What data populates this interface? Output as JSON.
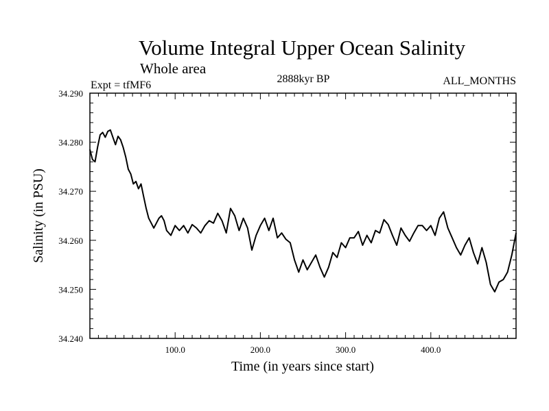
{
  "chart_data": {
    "type": "line",
    "title": "Volume Integral Upper Ocean Salinity",
    "subtitle": "Whole area",
    "experiment": "Expt = tfMF6",
    "period": "2888kyr BP",
    "months": "ALL_MONTHS",
    "xlabel": "Time (in years since start)",
    "ylabel": "Salinity (in PSU)",
    "xlim": [
      0,
      500
    ],
    "ylim": [
      34.24,
      34.29
    ],
    "x_ticks": [
      100,
      200,
      300,
      400
    ],
    "x_tick_labels": [
      "100.0",
      "200.0",
      "300.0",
      "400.0"
    ],
    "y_ticks": [
      34.24,
      34.25,
      34.26,
      34.27,
      34.28,
      34.29
    ],
    "y_tick_labels": [
      "34.240",
      "34.250",
      "34.260",
      "34.270",
      "34.280",
      "34.290"
    ],
    "grid": false,
    "series": [
      {
        "name": "salinity",
        "x": [
          0,
          3,
          6,
          9,
          12,
          15,
          18,
          21,
          24,
          27,
          30,
          33,
          36,
          39,
          42,
          45,
          48,
          51,
          54,
          57,
          60,
          63,
          66,
          69,
          72,
          75,
          78,
          81,
          84,
          87,
          90,
          95,
          100,
          105,
          110,
          115,
          120,
          125,
          130,
          135,
          140,
          145,
          150,
          155,
          160,
          165,
          170,
          175,
          180,
          185,
          190,
          195,
          200,
          205,
          210,
          215,
          220,
          225,
          230,
          235,
          240,
          245,
          250,
          255,
          260,
          265,
          270,
          275,
          280,
          285,
          290,
          295,
          300,
          305,
          310,
          315,
          320,
          325,
          330,
          335,
          340,
          345,
          350,
          355,
          360,
          365,
          370,
          375,
          380,
          385,
          390,
          395,
          400,
          405,
          410,
          415,
          420,
          425,
          430,
          435,
          440,
          445,
          450,
          455,
          460,
          465,
          470,
          475,
          480,
          485,
          490,
          495,
          500
        ],
        "values": [
          34.2785,
          34.2765,
          34.276,
          34.279,
          34.2815,
          34.282,
          34.281,
          34.2822,
          34.2825,
          34.281,
          34.2795,
          34.2812,
          34.2805,
          34.279,
          34.277,
          34.2745,
          34.2735,
          34.2715,
          34.272,
          34.2705,
          34.2715,
          34.269,
          34.2665,
          34.2645,
          34.2635,
          34.2625,
          34.2635,
          34.2645,
          34.265,
          34.264,
          34.262,
          34.261,
          34.263,
          34.262,
          34.263,
          34.2615,
          34.2632,
          34.2625,
          34.2615,
          34.263,
          34.264,
          34.2635,
          34.2655,
          34.264,
          34.2615,
          34.2665,
          34.265,
          34.262,
          34.2645,
          34.2625,
          34.258,
          34.261,
          34.263,
          34.2645,
          34.262,
          34.2645,
          34.2605,
          34.2615,
          34.2602,
          34.2595,
          34.256,
          34.2535,
          34.256,
          34.254,
          34.2555,
          34.257,
          34.2545,
          34.2525,
          34.2545,
          34.2575,
          34.2565,
          34.2595,
          34.2585,
          34.2605,
          34.2605,
          34.2618,
          34.259,
          34.261,
          34.2595,
          34.262,
          34.2615,
          34.2642,
          34.2632,
          34.261,
          34.259,
          34.2625,
          34.261,
          34.2598,
          34.2615,
          34.263,
          34.263,
          34.262,
          34.263,
          34.261,
          34.2645,
          34.2658,
          34.2625,
          34.2605,
          34.2585,
          34.257,
          34.259,
          34.2605,
          34.2575,
          34.2552,
          34.2585,
          34.2555,
          34.251,
          34.2495,
          34.2515,
          34.252,
          34.2535,
          34.257,
          34.2615
        ]
      }
    ]
  }
}
